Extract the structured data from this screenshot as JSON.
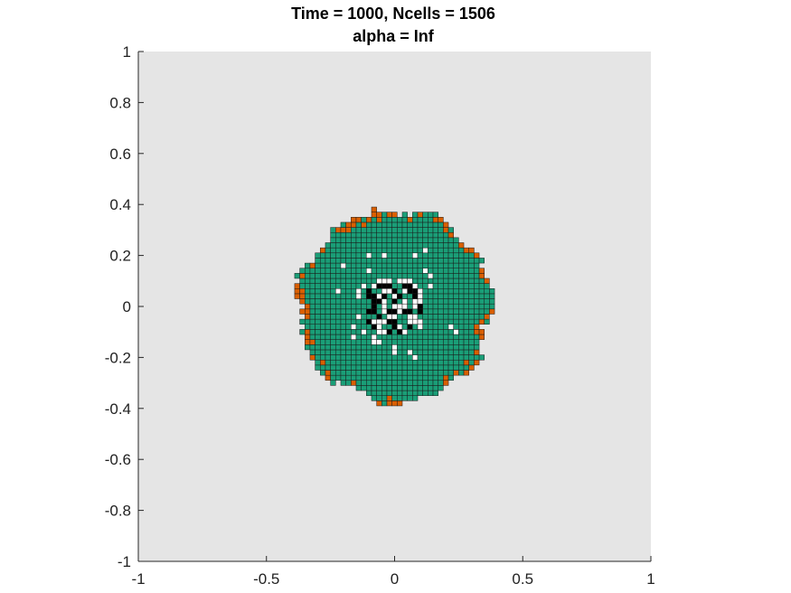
{
  "chart_data": {
    "type": "heatmap",
    "title_line1": "Time = 1000, Ncells = 1506",
    "title_line2": "alpha = Inf",
    "xlabel": "",
    "ylabel": "",
    "xlim": [
      -1,
      1
    ],
    "ylim": [
      -1,
      1
    ],
    "xticks": [
      "-1",
      "-0.5",
      "0",
      "0.5",
      "1"
    ],
    "yticks": [
      "1",
      "0.8",
      "0.6",
      "0.4",
      "0.2",
      "0",
      "-0.2",
      "-0.4",
      "-0.6",
      "-0.8",
      "-1"
    ],
    "grid": false,
    "background_color": "#e5e5e5",
    "cell_size": 0.02,
    "colors": {
      "interior_cell": "#1a9e77",
      "edge_cell": "#d95f02",
      "dead_cell": "#000000",
      "empty_cell": "#ffffff",
      "cell_border": "#1a1a1a"
    },
    "colony": {
      "center": [
        0.0,
        0.0
      ],
      "outer_radius": 0.375,
      "proliferating_rim_width": 0.03,
      "necrotic_core_radius": 0.12
    }
  }
}
